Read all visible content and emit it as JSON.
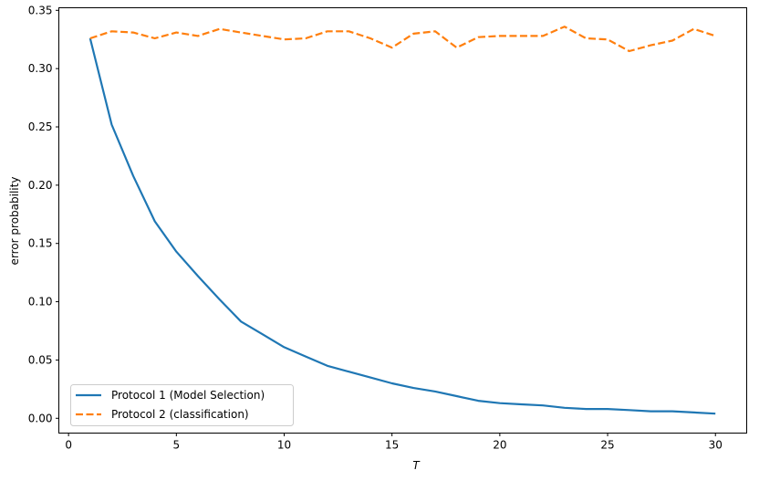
{
  "chart_data": {
    "type": "line",
    "xlabel": "T",
    "ylabel": "error probability",
    "xlim": [
      -0.45,
      31.45
    ],
    "ylim": [
      -0.0127,
      0.3522
    ],
    "xticks": [
      0,
      5,
      10,
      15,
      20,
      25,
      30
    ],
    "yticks": [
      "0.00",
      "0.05",
      "0.10",
      "0.15",
      "0.20",
      "0.25",
      "0.30",
      "0.35"
    ],
    "grid": false,
    "legend_position": "lower-left",
    "x": [
      1,
      2,
      3,
      4,
      5,
      6,
      7,
      8,
      9,
      10,
      11,
      12,
      13,
      14,
      15,
      16,
      17,
      18,
      19,
      20,
      21,
      22,
      23,
      24,
      25,
      26,
      27,
      28,
      29,
      30
    ],
    "series": [
      {
        "name": "Protocol 1 (Model Selection)",
        "color": "#1f77b4",
        "style": "solid",
        "values": [
          0.326,
          0.252,
          0.208,
          0.169,
          0.143,
          0.122,
          0.102,
          0.083,
          0.072,
          0.061,
          0.053,
          0.045,
          0.04,
          0.035,
          0.03,
          0.026,
          0.023,
          0.019,
          0.015,
          0.013,
          0.012,
          0.011,
          0.009,
          0.008,
          0.008,
          0.007,
          0.006,
          0.006,
          0.005,
          0.004
        ]
      },
      {
        "name": "Protocol 2 (classification)",
        "color": "#ff7f0e",
        "style": "dashed",
        "values": [
          0.326,
          0.332,
          0.331,
          0.326,
          0.331,
          0.328,
          0.334,
          0.331,
          0.328,
          0.325,
          0.326,
          0.332,
          0.332,
          0.326,
          0.318,
          0.33,
          0.332,
          0.318,
          0.327,
          0.328,
          0.328,
          0.328,
          0.336,
          0.326,
          0.325,
          0.315,
          0.32,
          0.324,
          0.334,
          0.328
        ]
      }
    ]
  }
}
